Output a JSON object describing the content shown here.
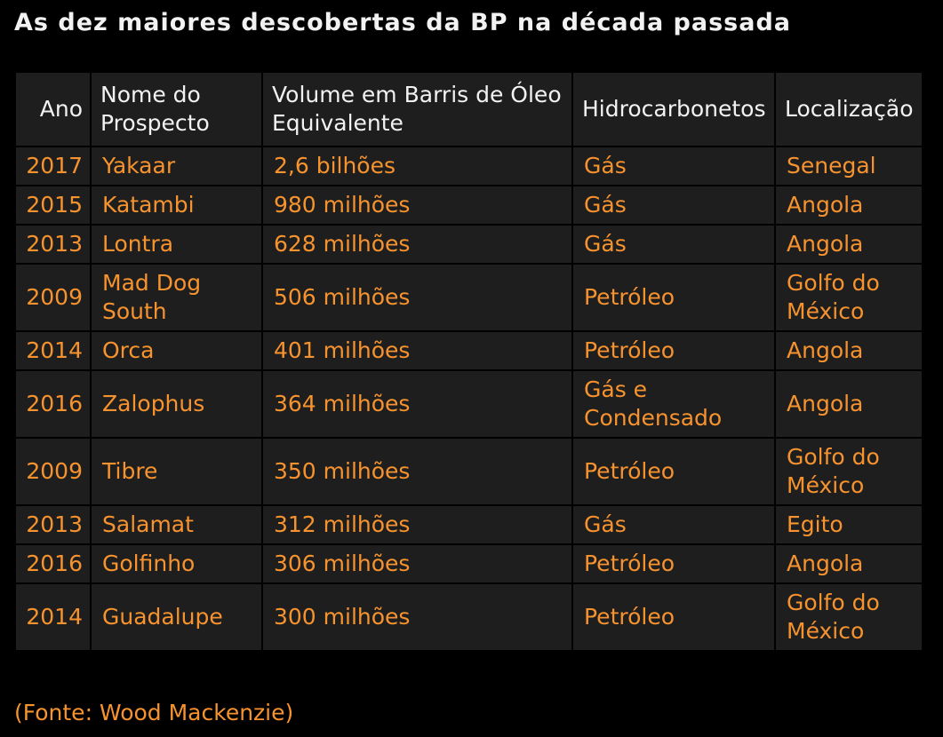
{
  "title": "As dez maiores descobertas da BP na década passada",
  "headers": {
    "year": "Ano",
    "prospect": "Nome do Prospecto",
    "volume": "Volume em Barris de Óleo Equivalente",
    "hydrocarbons": "Hidrocarbonetos",
    "location": "Localização"
  },
  "rows": [
    {
      "year": "2017",
      "prospect": "Yakaar",
      "volume": "2,6 bilhões",
      "hydrocarbons": "Gás",
      "location": "Senegal"
    },
    {
      "year": "2015",
      "prospect": "Katambi",
      "volume": "980 milhões",
      "hydrocarbons": "Gás",
      "location": "Angola"
    },
    {
      "year": "2013",
      "prospect": "Lontra",
      "volume": "628 milhões",
      "hydrocarbons": "Gás",
      "location": "Angola"
    },
    {
      "year": "2009",
      "prospect": "Mad Dog South",
      "volume": "506 milhões",
      "hydrocarbons": "Petróleo",
      "location": "Golfo do México"
    },
    {
      "year": "2014",
      "prospect": "Orca",
      "volume": "401 milhões",
      "hydrocarbons": "Petróleo",
      "location": "Angola"
    },
    {
      "year": "2016",
      "prospect": "Zalophus",
      "volume": "364 milhões",
      "hydrocarbons": "Gás e Condensado",
      "location": "Angola"
    },
    {
      "year": "2009",
      "prospect": "Tibre",
      "volume": "350 milhões",
      "hydrocarbons": "Petróleo",
      "location": "Golfo do México"
    },
    {
      "year": "2013",
      "prospect": "Salamat",
      "volume": "312 milhões",
      "hydrocarbons": "Gás",
      "location": "Egito"
    },
    {
      "year": "2016",
      "prospect": "Golfinho",
      "volume": "306 milhões",
      "hydrocarbons": "Petróleo",
      "location": "Angola"
    },
    {
      "year": "2014",
      "prospect": "Guadalupe",
      "volume": "300 milhões",
      "hydrocarbons": "Petróleo",
      "location": "Golfo do México"
    }
  ],
  "source": "(Fonte: Wood Mackenzie)",
  "colors": {
    "background": "#000000",
    "cell": "#1e1e1e",
    "header_text": "#f2f2f2",
    "body_text": "#f7932f"
  }
}
